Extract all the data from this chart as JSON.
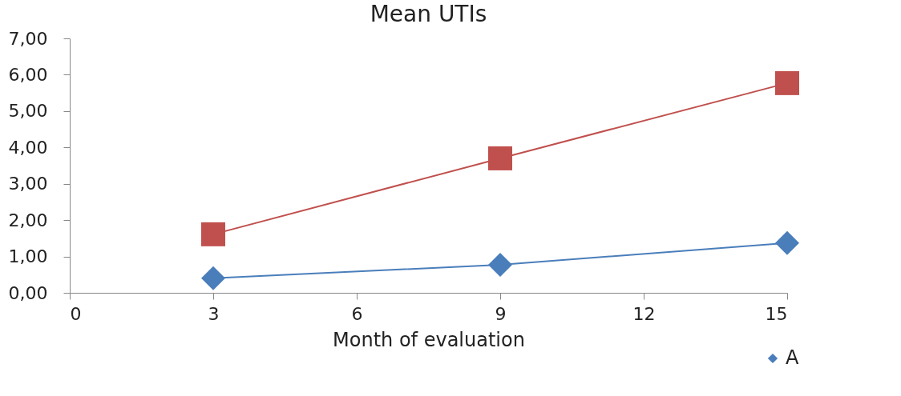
{
  "chart_data": {
    "type": "line",
    "title": "Mean UTIs",
    "xlabel": "Month of evaluation",
    "x": [
      3,
      9,
      15
    ],
    "series": [
      {
        "name": "A",
        "color": "#4a7ebb",
        "marker": "diamond",
        "values": [
          0.4,
          0.77,
          1.37
        ]
      },
      {
        "color": "#c0504d",
        "marker": "square",
        "values": [
          1.61,
          3.7,
          5.77
        ]
      }
    ],
    "xlim": [
      0,
      15
    ],
    "xticks": [
      0,
      3,
      6,
      9,
      12,
      15
    ],
    "ylim": [
      0,
      7
    ],
    "yticks": [
      {
        "value": 0,
        "label": "0,00"
      },
      {
        "value": 1,
        "label": "1,00"
      },
      {
        "value": 2,
        "label": "2,00"
      },
      {
        "value": 3,
        "label": "3,00"
      },
      {
        "value": 4,
        "label": "4,00"
      },
      {
        "value": 5,
        "label": "5,00"
      },
      {
        "value": 6,
        "label": "6,00"
      },
      {
        "value": 7,
        "label": "7,00"
      }
    ],
    "grid": false,
    "legend": "bottom right"
  }
}
